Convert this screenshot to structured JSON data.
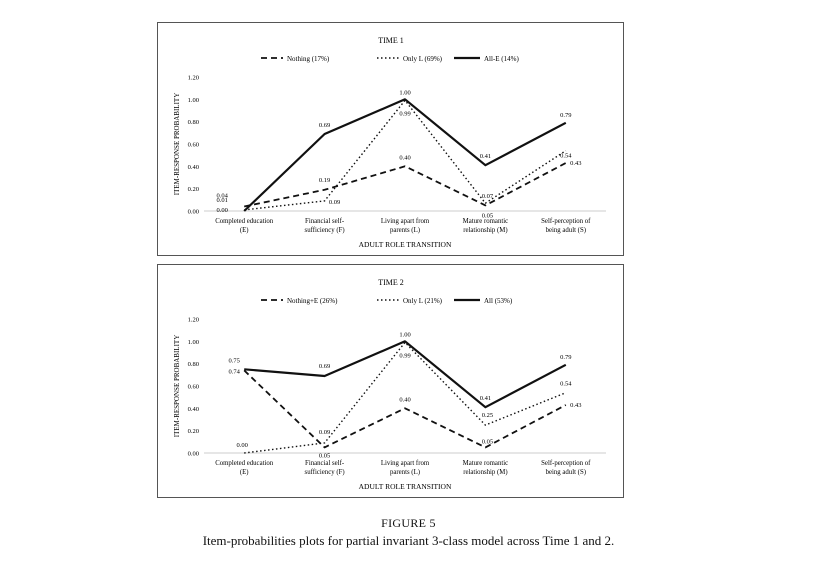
{
  "chart_data": [
    {
      "type": "line",
      "title": "TIME 1",
      "xlabel": "ADULT ROLE TRANSITION",
      "ylabel": "ITEM-RESPONSE PROBABILITY",
      "ylim": [
        0,
        1.2
      ],
      "yticks": [
        "0.00",
        "0.20",
        "0.40",
        "0.60",
        "0.80",
        "1.00",
        "1.20"
      ],
      "categories": [
        [
          "Completed education",
          "(E)"
        ],
        [
          "Financial self-",
          "sufficiency (F)"
        ],
        [
          "Living apart from",
          "parents (L)"
        ],
        [
          "Mature romantic",
          "relationship (M)"
        ],
        [
          "Self-perception of",
          "being adult (S)"
        ]
      ],
      "legend_position": "top",
      "grid": false,
      "series": [
        {
          "name": "Nothing (17%)",
          "style": "dashed",
          "values": [
            0.04,
            0.19,
            0.4,
            0.05,
            0.43
          ],
          "labels": [
            "0.04",
            "0.19",
            "0.40",
            "0.05",
            "0.43"
          ]
        },
        {
          "name": "Only L (69%)",
          "style": "dotted",
          "values": [
            0.01,
            0.09,
            0.99,
            0.07,
            0.54
          ],
          "labels": [
            "0.01",
            "0.09",
            "0.99",
            "0.07",
            "0.54"
          ]
        },
        {
          "name": "All-E (14%)",
          "style": "solid",
          "values": [
            0.0,
            0.69,
            1.0,
            0.41,
            0.79
          ],
          "labels": [
            "0.00",
            "0.69",
            "1.00",
            "0.41",
            "0.79"
          ]
        }
      ]
    },
    {
      "type": "line",
      "title": "TIME 2",
      "xlabel": "ADULT ROLE TRANSITION",
      "ylabel": "ITEM-RESPONSE PROBABILITY",
      "ylim": [
        0,
        1.2
      ],
      "yticks": [
        "0.00",
        "0.20",
        "0.40",
        "0.60",
        "0.80",
        "1.00",
        "1.20"
      ],
      "categories": [
        [
          "Completed education",
          "(E)"
        ],
        [
          "Financial self-",
          "sufficiency (F)"
        ],
        [
          "Living apart from",
          "parents (L)"
        ],
        [
          "Mature romantic",
          "relationship (M)"
        ],
        [
          "Self-perception of",
          "being adult (S)"
        ]
      ],
      "legend_position": "top",
      "grid": false,
      "series": [
        {
          "name": "Nothing+E (26%)",
          "style": "dashed",
          "values": [
            0.74,
            0.05,
            0.4,
            0.05,
            0.43
          ],
          "labels": [
            "0.74",
            "0.05",
            "0.40",
            "0.05",
            "0.43"
          ]
        },
        {
          "name": "Only L (21%)",
          "style": "dotted",
          "values": [
            0.0,
            0.09,
            0.99,
            0.25,
            0.54
          ],
          "labels": [
            "0.00",
            "0.09",
            "0.99",
            "0.25",
            "0.54"
          ]
        },
        {
          "name": "All (53%)",
          "style": "solid",
          "values": [
            0.75,
            0.69,
            1.0,
            0.41,
            0.79
          ],
          "labels": [
            "0.75",
            "0.69",
            "1.00",
            "0.41",
            "0.79"
          ]
        }
      ]
    }
  ],
  "figure": {
    "label": "FIGURE 5",
    "caption": "Item-probabilities plots for partial invariant 3-class model across Time 1 and 2."
  }
}
